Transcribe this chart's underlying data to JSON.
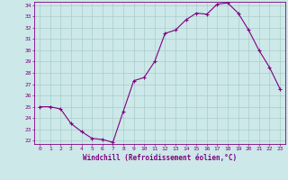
{
  "x": [
    0,
    1,
    2,
    3,
    4,
    5,
    6,
    7,
    8,
    9,
    10,
    11,
    12,
    13,
    14,
    15,
    16,
    17,
    18,
    19,
    20,
    21,
    22,
    23
  ],
  "y": [
    25,
    25,
    24.8,
    23.5,
    22.8,
    22.2,
    22.1,
    21.85,
    24.6,
    27.3,
    27.6,
    29.0,
    31.5,
    31.8,
    32.7,
    33.3,
    33.2,
    34.1,
    34.2,
    33.3,
    31.8,
    30.0,
    28.5,
    26.6
  ],
  "line_color": "#800080",
  "marker": "+",
  "bg_color": "#cce8e8",
  "grid_color": "#aacccc",
  "xlabel": "Windchill (Refroidissement éolien,°C)",
  "xlabel_color": "#800080",
  "tick_color": "#800080",
  "ylim": [
    21.7,
    34.3
  ],
  "yticks": [
    22,
    23,
    24,
    25,
    26,
    27,
    28,
    29,
    30,
    31,
    32,
    33,
    34
  ],
  "xticks": [
    0,
    1,
    2,
    3,
    4,
    5,
    6,
    7,
    8,
    9,
    10,
    11,
    12,
    13,
    14,
    15,
    16,
    17,
    18,
    19,
    20,
    21,
    22,
    23
  ],
  "spine_color": "#800080"
}
